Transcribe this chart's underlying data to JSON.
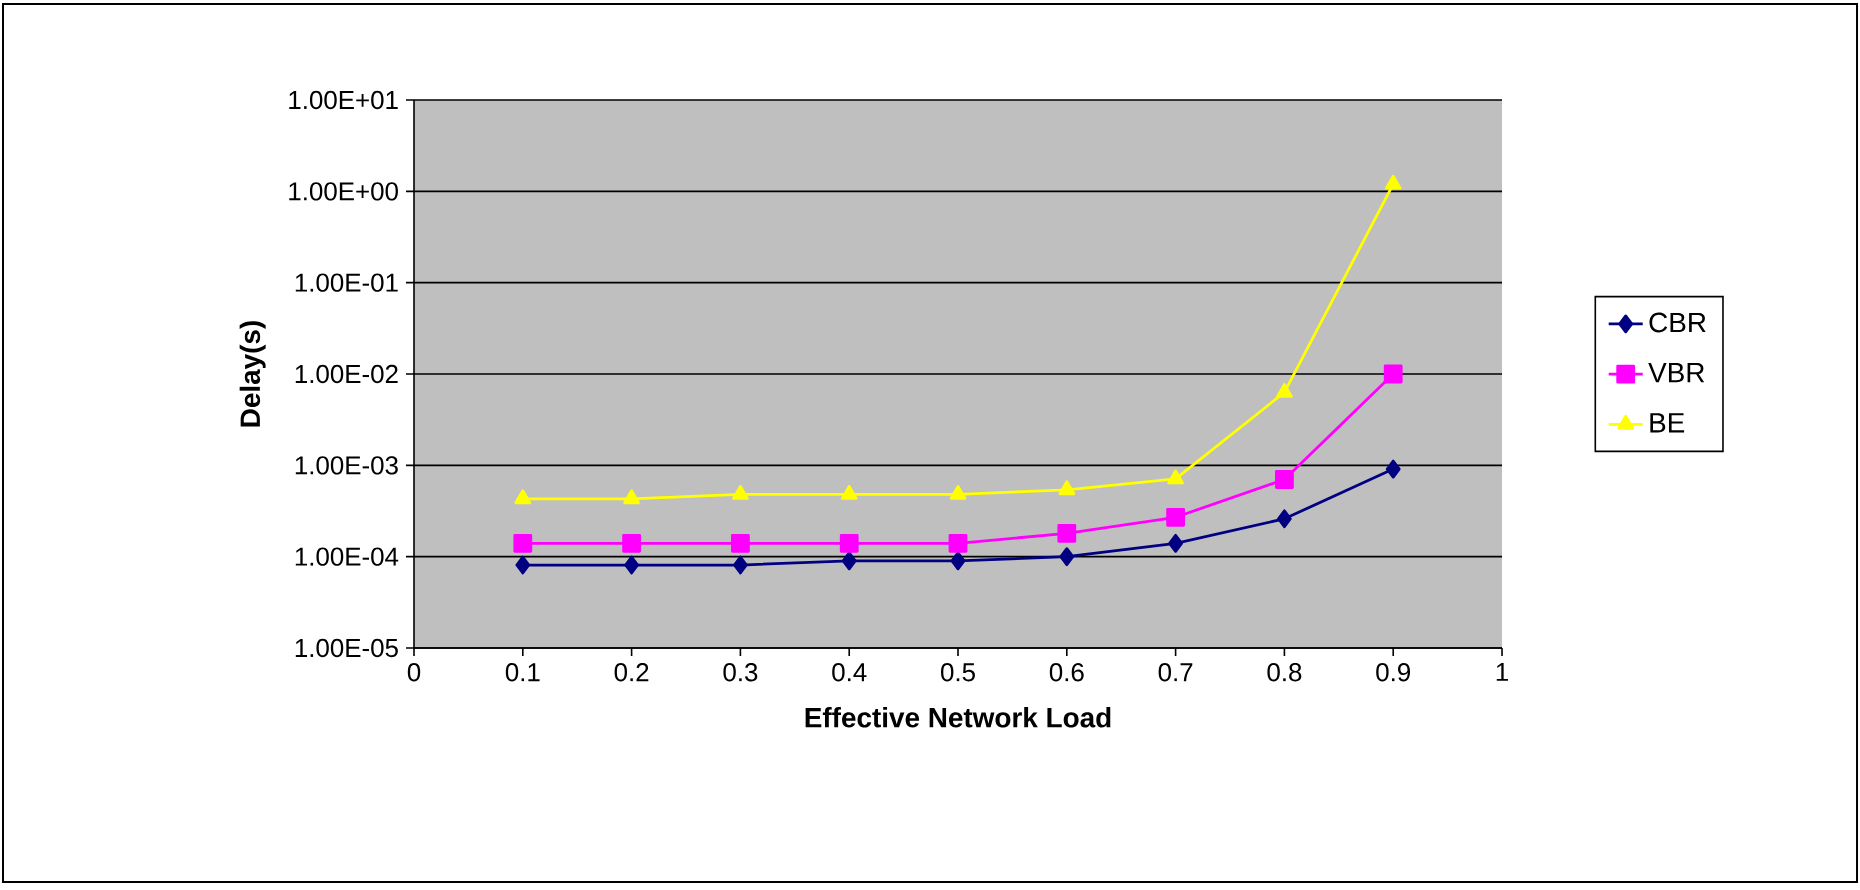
{
  "chart_data": {
    "type": "line",
    "xlabel": "Effective Network Load",
    "ylabel": "Delay(s)",
    "x": [
      0.1,
      0.2,
      0.3,
      0.4,
      0.5,
      0.6,
      0.7,
      0.8,
      0.9
    ],
    "series": [
      {
        "name": "CBR",
        "color": "#000080",
        "marker": "diamond",
        "values": [
          8.1e-05,
          8.1e-05,
          8.1e-05,
          9e-05,
          9e-05,
          0.0001,
          0.00014,
          0.00026,
          0.00091
        ]
      },
      {
        "name": "VBR",
        "color": "#ff00ff",
        "marker": "square",
        "values": [
          0.00014,
          0.00014,
          0.00014,
          0.00014,
          0.00014,
          0.00018,
          0.00027,
          0.0007,
          0.01
        ]
      },
      {
        "name": "BE",
        "color": "#ffff00",
        "marker": "triangle",
        "values": [
          0.00043,
          0.00043,
          0.00048,
          0.00048,
          0.00048,
          0.00054,
          0.00071,
          0.0063,
          1.2
        ]
      }
    ],
    "log": "y",
    "grid": "y",
    "legend": "right",
    "line_style": "solid",
    "xlim": [
      0,
      1
    ],
    "xticks": [
      0,
      0.1,
      0.2,
      0.3,
      0.4,
      0.5,
      0.6,
      0.7,
      0.8,
      0.9,
      1
    ],
    "ylim": [
      1e-05,
      10
    ],
    "yticks": [
      {
        "value": 1e-05,
        "label": "1.00E-05"
      },
      {
        "value": 0.0001,
        "label": "1.00E-04"
      },
      {
        "value": 0.001,
        "label": "1.00E-03"
      },
      {
        "value": 0.01,
        "label": "1.00E-02"
      },
      {
        "value": 0.1,
        "label": "1.00E-01"
      },
      {
        "value": 1,
        "label": "1.00E+00"
      },
      {
        "value": 10,
        "label": "1.00E+01"
      }
    ]
  }
}
